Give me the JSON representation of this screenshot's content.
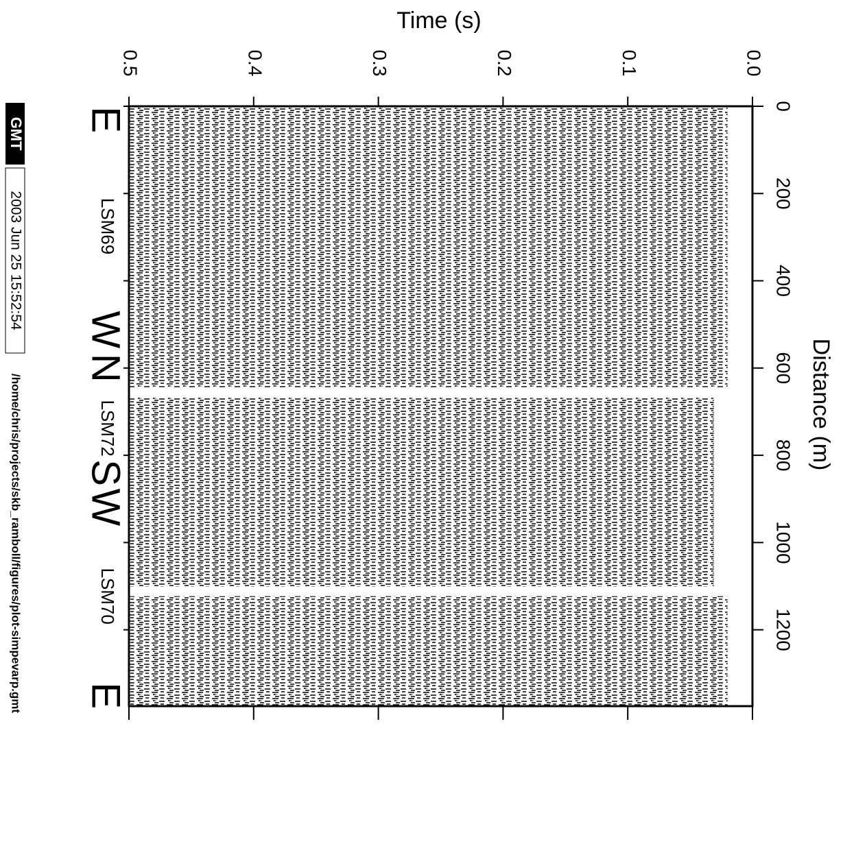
{
  "chart_data": {
    "type": "section",
    "xlabel": "Time (s)",
    "ylabel": "Distance (m)",
    "xlim": [
      0.5,
      0
    ],
    "xticks": [
      0.5,
      0.4,
      0.3,
      0.2,
      0.1,
      {
        "value": 0,
        "label": "0.0"
      }
    ],
    "ylim": [
      0,
      1375
    ],
    "yticks": [
      0,
      200,
      400,
      600,
      800,
      1000,
      1200
    ],
    "blocks": [
      {
        "distance": [
          0,
          644
        ],
        "time": [
          0.02,
          0.5
        ]
      },
      {
        "distance": [
          668,
          1101
        ],
        "time": [
          0.031,
          0.5
        ]
      },
      {
        "distance": [
          1123,
          1375
        ],
        "time": [
          0.02,
          0.5
        ]
      }
    ],
    "annotations": [
      {
        "text": "E",
        "distance": 31,
        "size": "large"
      },
      {
        "text": "LSM69",
        "distance": 275,
        "size": "small"
      },
      {
        "text": "W",
        "distance": 512,
        "size": "large"
      },
      {
        "text": "N",
        "distance": 600,
        "size": "large"
      },
      {
        "text": "LSM72",
        "distance": 738,
        "size": "small"
      },
      {
        "text": "S",
        "distance": 840,
        "size": "large"
      },
      {
        "text": "W",
        "distance": 919,
        "size": "large"
      },
      {
        "text": "LSM70",
        "distance": 1123,
        "size": "small"
      },
      {
        "text": "E",
        "distance": 1351,
        "size": "large"
      }
    ]
  },
  "stamp": {
    "logo": "GMT",
    "date": "2003 Jun 25 15:52:54",
    "path": "/home/chris/projects/skb_ramboll/figures/plot-simpevarp.gmt"
  }
}
